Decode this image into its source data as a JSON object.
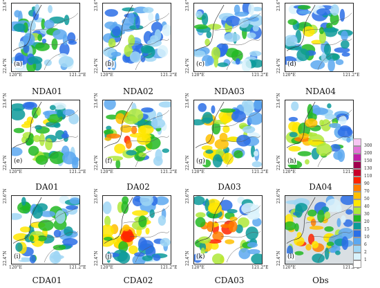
{
  "axis": {
    "lat_top": "23.6°N",
    "lat_bottom": "22.4°N",
    "lon_left": "120°E",
    "lon_right": "121.2°E"
  },
  "panels": [
    {
      "tag": "(a)",
      "title": "NDA01",
      "intensity": 0.15
    },
    {
      "tag": "(b)",
      "title": "NDA02",
      "intensity": 0.18
    },
    {
      "tag": "(c)",
      "title": "NDA03",
      "intensity": 0.22
    },
    {
      "tag": "(d)",
      "title": "NDA04",
      "intensity": 0.25
    },
    {
      "tag": "(e)",
      "title": "DA01",
      "intensity": 0.45
    },
    {
      "tag": "(f)",
      "title": "DA02",
      "intensity": 0.6
    },
    {
      "tag": "(g)",
      "title": "DA03",
      "intensity": 0.55
    },
    {
      "tag": "(h)",
      "title": "DA04",
      "intensity": 0.5
    },
    {
      "tag": "(i)",
      "title": "CDA01",
      "intensity": 0.4
    },
    {
      "tag": "(j)",
      "title": "CDA02",
      "intensity": 0.55
    },
    {
      "tag": "(k)",
      "title": "CDA03",
      "intensity": 0.7
    },
    {
      "tag": "(l)",
      "title": "Obs",
      "intensity": 0.65
    }
  ],
  "legend": {
    "ticks": [
      "300",
      "200",
      "150",
      "130",
      "110",
      "90",
      "70",
      "50",
      "40",
      "30",
      "20",
      "15",
      "10",
      "6",
      "2",
      "1"
    ],
    "colors": [
      "#f7c6f2",
      "#e373d7",
      "#c01ea6",
      "#a0004d",
      "#c8002a",
      "#ff2400",
      "#ff7e00",
      "#ffbf00",
      "#ffe600",
      "#aee83a",
      "#22b822",
      "#0c9a9a",
      "#2b6fe6",
      "#5ca8f0",
      "#9fd6f5",
      "#d9f2fb",
      "#ffffff"
    ]
  }
}
